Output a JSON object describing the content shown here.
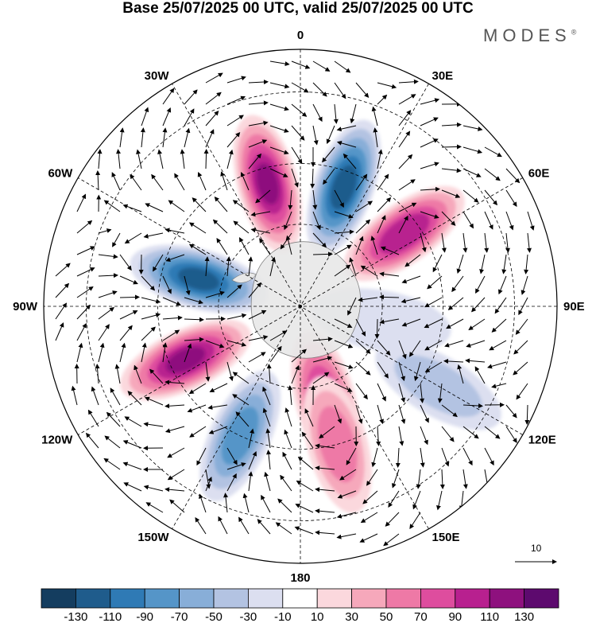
{
  "title": "Base 25/07/2025 00 UTC, valid 25/07/2025 00 UTC",
  "logo": {
    "text": "MODES",
    "mark": "®"
  },
  "map": {
    "projection": "south-polar-stereographic",
    "longitude_labels": [
      {
        "text": "0",
        "lon": 0
      },
      {
        "text": "30E",
        "lon": 30
      },
      {
        "text": "60E",
        "lon": 60
      },
      {
        "text": "90E",
        "lon": 90
      },
      {
        "text": "120E",
        "lon": 120
      },
      {
        "text": "150E",
        "lon": 150
      },
      {
        "text": "180",
        "lon": 180
      },
      {
        "text": "150W",
        "lon": -150
      },
      {
        "text": "120W",
        "lon": -120
      },
      {
        "text": "90W",
        "lon": -90
      },
      {
        "text": "60W",
        "lon": -60
      },
      {
        "text": "30W",
        "lon": -30
      }
    ],
    "field": "anomaly",
    "anomaly_centers": [
      {
        "sign": "positive",
        "value": 120,
        "lon": -15,
        "lat": -45
      },
      {
        "sign": "negative",
        "value": -125,
        "lon": 20,
        "lat": -45
      },
      {
        "sign": "positive",
        "value": 115,
        "lon": 55,
        "lat": -45
      },
      {
        "sign": "negative",
        "value": -120,
        "lon": -75,
        "lat": -52
      },
      {
        "sign": "positive",
        "value": 120,
        "lon": -115,
        "lat": -45
      },
      {
        "sign": "negative",
        "value": -90,
        "lon": -155,
        "lat": -40
      },
      {
        "sign": "positive",
        "value": 100,
        "lon": 165,
        "lat": -55
      },
      {
        "sign": "positive",
        "value": 75,
        "lon": 165,
        "lat": -40
      },
      {
        "sign": "negative",
        "value": -55,
        "lon": 120,
        "lat": -35
      },
      {
        "sign": "negative",
        "value": -35,
        "lon": 100,
        "lat": -60
      }
    ],
    "reference_vector": {
      "label": "10",
      "value": 10
    }
  },
  "colorbar": {
    "labels": [
      "-130",
      "-110",
      "-90",
      "-70",
      "-50",
      "-30",
      "-10",
      "10",
      "30",
      "50",
      "70",
      "90",
      "110",
      "130"
    ],
    "colors": [
      "#143d5f",
      "#1f5c8c",
      "#2f7ab5",
      "#5595c8",
      "#88aed8",
      "#b3c3e2",
      "#dcdff0",
      "#ffffff",
      "#fbd8dd",
      "#f6a8bb",
      "#ee79a6",
      "#de4d9e",
      "#b8208f",
      "#8e117e",
      "#5d0a6e"
    ]
  }
}
